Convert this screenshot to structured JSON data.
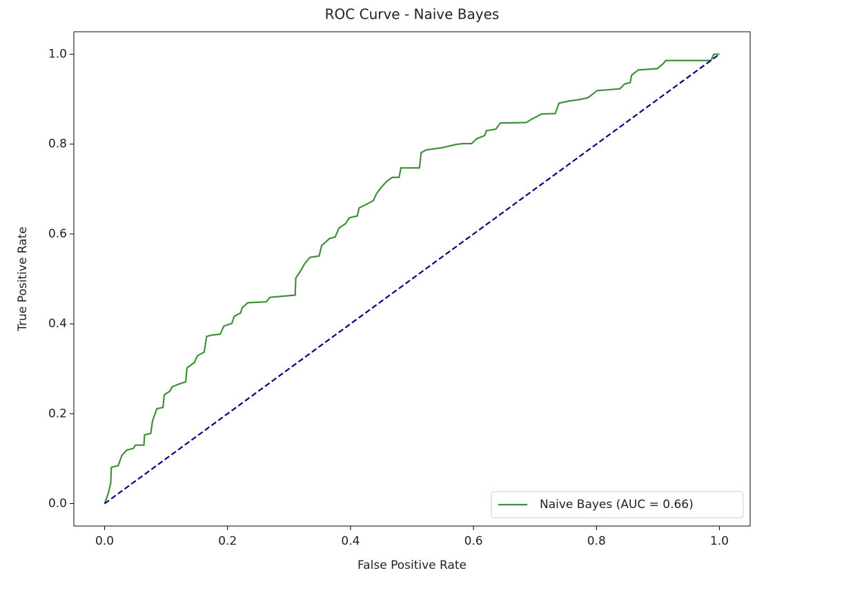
{
  "chart_data": {
    "type": "line",
    "title": "ROC Curve - Naive Bayes",
    "xlabel": "False Positive Rate",
    "ylabel": "True Positive Rate",
    "xlim": [
      -0.05,
      1.05
    ],
    "ylim": [
      -0.05,
      1.05
    ],
    "xticks": [
      {
        "value": 0,
        "label": "0.0"
      },
      0.2,
      0.4,
      0.6,
      0.8,
      {
        "value": 1,
        "label": "1.0"
      }
    ],
    "yticks": [
      {
        "value": 0,
        "label": "0.0"
      },
      0.2,
      0.4,
      0.6,
      0.8,
      {
        "value": 1,
        "label": "1.0"
      }
    ],
    "grid": false,
    "legend": "lower right",
    "series": [
      {
        "name": "Naive Bayes (AUC = 0.66)",
        "color": "#418e3a",
        "style": "solid",
        "x": [
          0,
          0.006,
          0.01,
          0.011,
          0.022,
          0.028,
          0.036,
          0.047,
          0.05,
          0.064,
          0.065,
          0.075,
          0.078,
          0.085,
          0.095,
          0.097,
          0.106,
          0.11,
          0.119,
          0.132,
          0.134,
          0.146,
          0.151,
          0.162,
          0.166,
          0.174,
          0.188,
          0.194,
          0.207,
          0.211,
          0.221,
          0.224,
          0.233,
          0.263,
          0.269,
          0.31,
          0.311,
          0.319,
          0.325,
          0.334,
          0.349,
          0.353,
          0.366,
          0.375,
          0.381,
          0.392,
          0.398,
          0.411,
          0.414,
          0.426,
          0.437,
          0.442,
          0.45,
          0.459,
          0.468,
          0.479,
          0.482,
          0.512,
          0.515,
          0.523,
          0.549,
          0.571,
          0.582,
          0.597,
          0.605,
          0.618,
          0.621,
          0.636,
          0.644,
          0.686,
          0.694,
          0.711,
          0.733,
          0.739,
          0.756,
          0.772,
          0.786,
          0.801,
          0.838,
          0.846,
          0.855,
          0.857,
          0.868,
          0.899,
          0.907,
          0.913,
          0.986,
          0.991,
          1
        ],
        "values": [
          0,
          0.023,
          0.046,
          0.081,
          0.084,
          0.107,
          0.119,
          0.123,
          0.13,
          0.13,
          0.153,
          0.156,
          0.184,
          0.211,
          0.214,
          0.242,
          0.25,
          0.26,
          0.265,
          0.271,
          0.302,
          0.314,
          0.329,
          0.337,
          0.372,
          0.375,
          0.377,
          0.395,
          0.401,
          0.417,
          0.424,
          0.436,
          0.447,
          0.449,
          0.459,
          0.464,
          0.502,
          0.518,
          0.533,
          0.548,
          0.551,
          0.574,
          0.59,
          0.593,
          0.613,
          0.623,
          0.636,
          0.64,
          0.658,
          0.666,
          0.674,
          0.689,
          0.704,
          0.717,
          0.726,
          0.726,
          0.747,
          0.747,
          0.781,
          0.787,
          0.792,
          0.799,
          0.801,
          0.801,
          0.812,
          0.819,
          0.83,
          0.833,
          0.847,
          0.848,
          0.855,
          0.867,
          0.868,
          0.891,
          0.896,
          0.899,
          0.903,
          0.919,
          0.923,
          0.934,
          0.937,
          0.953,
          0.965,
          0.968,
          0.977,
          0.986,
          0.986,
          1,
          1
        ]
      },
      {
        "color": "navy",
        "style": "dashed",
        "x": [
          0,
          1
        ],
        "values": [
          0,
          1
        ]
      }
    ]
  }
}
